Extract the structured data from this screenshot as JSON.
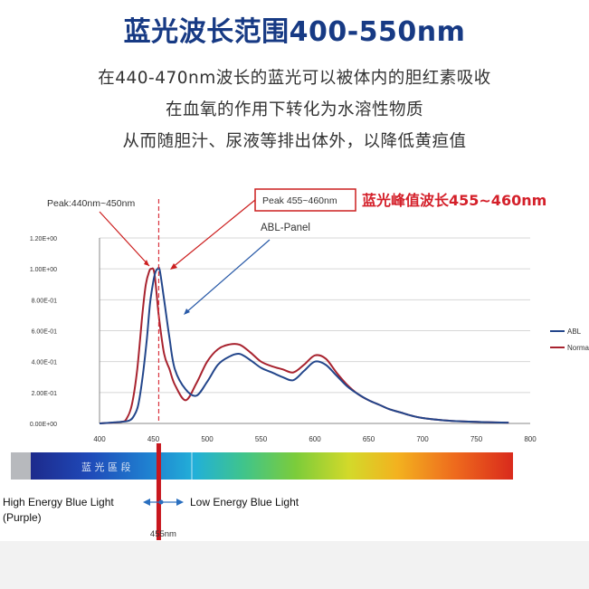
{
  "page": {
    "title": "蓝光波长范围400-550nm",
    "description_lines": [
      "在440-470nm波长的蓝光可以被体内的胆红素吸收",
      "在血氧的作用下转化为水溶性物质",
      "从而随胆汁、尿液等排出体外，以降低黄疸值"
    ]
  },
  "chart_data": {
    "type": "line",
    "x_ticks": [
      "400",
      "450",
      "500",
      "550",
      "600",
      "650",
      "700",
      "750",
      "800"
    ],
    "y_ticks": [
      "0.00E+00",
      "2.00E-01",
      "4.00E-01",
      "6.00E-01",
      "8.00E-01",
      "1.00E+00",
      "1.20E+00"
    ],
    "xlim": [
      400,
      800
    ],
    "ylim": [
      0,
      1.2
    ],
    "series": [
      {
        "name": "Normal",
        "color": "#a8232f",
        "x": [
          400,
          420,
          425,
          430,
          435,
          440,
          443,
          446,
          448,
          451,
          455,
          460,
          465,
          470,
          480,
          490,
          500,
          510,
          520,
          530,
          540,
          550,
          560,
          570,
          580,
          590,
          600,
          610,
          620,
          630,
          640,
          650,
          660,
          670,
          680,
          690,
          700,
          720,
          740,
          760,
          780
        ],
        "y": [
          0.0,
          0.01,
          0.03,
          0.12,
          0.35,
          0.72,
          0.9,
          0.98,
          1.0,
          0.97,
          0.7,
          0.45,
          0.35,
          0.25,
          0.15,
          0.26,
          0.4,
          0.48,
          0.51,
          0.51,
          0.46,
          0.4,
          0.37,
          0.35,
          0.33,
          0.38,
          0.44,
          0.42,
          0.33,
          0.25,
          0.19,
          0.15,
          0.12,
          0.09,
          0.07,
          0.05,
          0.035,
          0.02,
          0.012,
          0.008,
          0.005
        ]
      },
      {
        "name": "ABL",
        "color": "#23468b",
        "x": [
          400,
          420,
          428,
          432,
          436,
          440,
          444,
          447,
          450,
          452,
          454,
          456,
          460,
          465,
          470,
          480,
          490,
          500,
          510,
          520,
          530,
          540,
          550,
          560,
          570,
          580,
          590,
          600,
          610,
          620,
          630,
          640,
          650,
          660,
          670,
          680,
          690,
          700,
          720,
          740,
          760,
          780
        ],
        "y": [
          0.0,
          0.01,
          0.02,
          0.05,
          0.12,
          0.3,
          0.55,
          0.78,
          0.92,
          0.98,
          1.0,
          0.99,
          0.8,
          0.55,
          0.35,
          0.22,
          0.18,
          0.27,
          0.38,
          0.43,
          0.45,
          0.41,
          0.36,
          0.33,
          0.3,
          0.28,
          0.34,
          0.4,
          0.38,
          0.31,
          0.24,
          0.19,
          0.15,
          0.12,
          0.09,
          0.07,
          0.05,
          0.035,
          0.02,
          0.012,
          0.008,
          0.005
        ]
      }
    ],
    "annotations": {
      "peak_left": "Peak:440nm~450nm",
      "peak_box": "Peak 455~460nm",
      "peak_red_label": "蓝光峰值波长455~460nm",
      "panel_label": "ABL-Panel",
      "band_text": "蓝 光 區 段",
      "high_energy_line1": "High Energy Blue Light",
      "high_energy_line2": "(Purple)",
      "low_energy": "Low Energy Blue Light",
      "marker_wavelength": "455nm",
      "marker_value": 455,
      "dash_line_value": 455
    },
    "colors": {
      "title": "#173a84",
      "red": "#cc1f1f",
      "axis": "#888888",
      "grid": "#d7d7d7"
    }
  }
}
